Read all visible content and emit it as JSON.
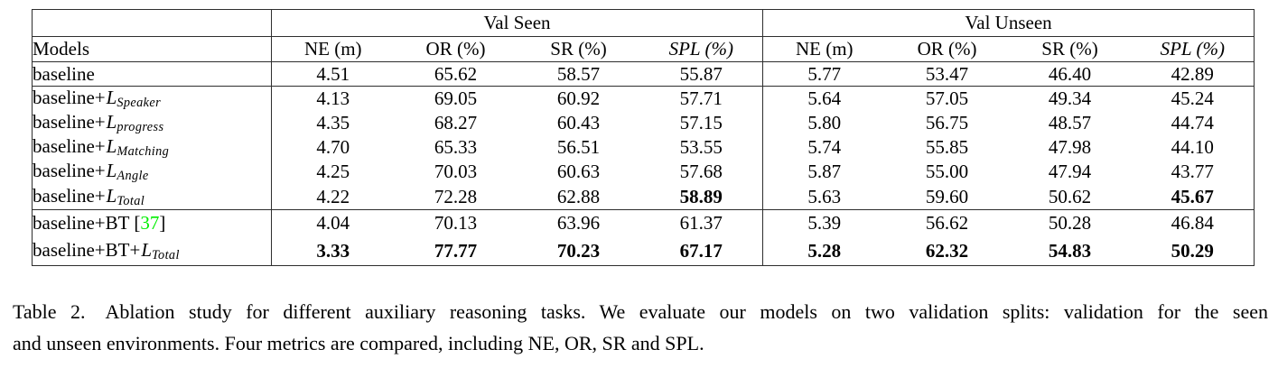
{
  "colors": {
    "citation_green": "#00EE00"
  },
  "table": {
    "group_headers": [
      "Val Seen",
      "Val Unseen"
    ],
    "columns": [
      "Models",
      "NE (m)",
      "OR (%)",
      "SR (%)",
      "SPL (%)",
      "NE (m)",
      "OR (%)",
      "SR (%)",
      "SPL (%)"
    ],
    "groups": [
      {
        "rows": [
          {
            "name": [
              {
                "text": "baseline",
                "style": "roman"
              }
            ],
            "values": [
              "4.51",
              "65.62",
              "58.57",
              "55.87",
              "5.77",
              "53.47",
              "46.40",
              "42.89"
            ],
            "bold": []
          }
        ]
      },
      {
        "rows": [
          {
            "name": [
              {
                "text": "baseline+",
                "style": "roman"
              },
              {
                "text": "L",
                "style": "math"
              },
              {
                "text": "Speaker",
                "style": "subscript"
              }
            ],
            "values": [
              "4.13",
              "69.05",
              "60.92",
              "57.71",
              "5.64",
              "57.05",
              "49.34",
              "45.24"
            ],
            "bold": []
          },
          {
            "name": [
              {
                "text": "baseline+",
                "style": "roman"
              },
              {
                "text": "L",
                "style": "math"
              },
              {
                "text": "progress",
                "style": "subscript"
              }
            ],
            "values": [
              "4.35",
              "68.27",
              "60.43",
              "57.15",
              "5.80",
              "56.75",
              "48.57",
              "44.74"
            ],
            "bold": []
          },
          {
            "name": [
              {
                "text": "baseline+",
                "style": "roman"
              },
              {
                "text": "L",
                "style": "math"
              },
              {
                "text": "Matching",
                "style": "subscript"
              }
            ],
            "values": [
              "4.70",
              "65.33",
              "56.51",
              "53.55",
              "5.74",
              "55.85",
              "47.98",
              "44.10"
            ],
            "bold": []
          },
          {
            "name": [
              {
                "text": "baseline+",
                "style": "roman"
              },
              {
                "text": "L",
                "style": "math"
              },
              {
                "text": "Angle",
                "style": "subscript"
              }
            ],
            "values": [
              "4.25",
              "70.03",
              "60.63",
              "57.68",
              "5.87",
              "55.00",
              "47.94",
              "43.77"
            ],
            "bold": []
          },
          {
            "name": [
              {
                "text": "baseline+",
                "style": "roman"
              },
              {
                "text": "L",
                "style": "math"
              },
              {
                "text": "Total",
                "style": "subscript"
              }
            ],
            "values": [
              "4.22",
              "72.28",
              "62.88",
              "58.89",
              "5.63",
              "59.60",
              "50.62",
              "45.67"
            ],
            "bold": [
              3,
              7
            ]
          }
        ]
      },
      {
        "rows": [
          {
            "name": [
              {
                "text": "baseline+BT [",
                "style": "roman"
              },
              {
                "text": "37",
                "style": "citation"
              },
              {
                "text": "]",
                "style": "roman"
              }
            ],
            "values": [
              "4.04",
              "70.13",
              "63.96",
              "61.37",
              "5.39",
              "56.62",
              "50.28",
              "46.84"
            ],
            "bold": []
          },
          {
            "name": [
              {
                "text": "baseline+BT+",
                "style": "roman"
              },
              {
                "text": "L",
                "style": "math"
              },
              {
                "text": "Total",
                "style": "subscript"
              }
            ],
            "values": [
              "3.33",
              "77.77",
              "70.23",
              "67.17",
              "5.28",
              "62.32",
              "54.83",
              "50.29"
            ],
            "bold": [
              0,
              1,
              2,
              3,
              4,
              5,
              6,
              7
            ]
          }
        ]
      }
    ]
  },
  "caption": {
    "line1": "Table 2. Ablation study for different auxiliary reasoning tasks. We evaluate our models on two validation splits: validation for the seen",
    "line2": "and unseen environments. Four metrics are compared, including NE, OR, SR and SPL."
  }
}
